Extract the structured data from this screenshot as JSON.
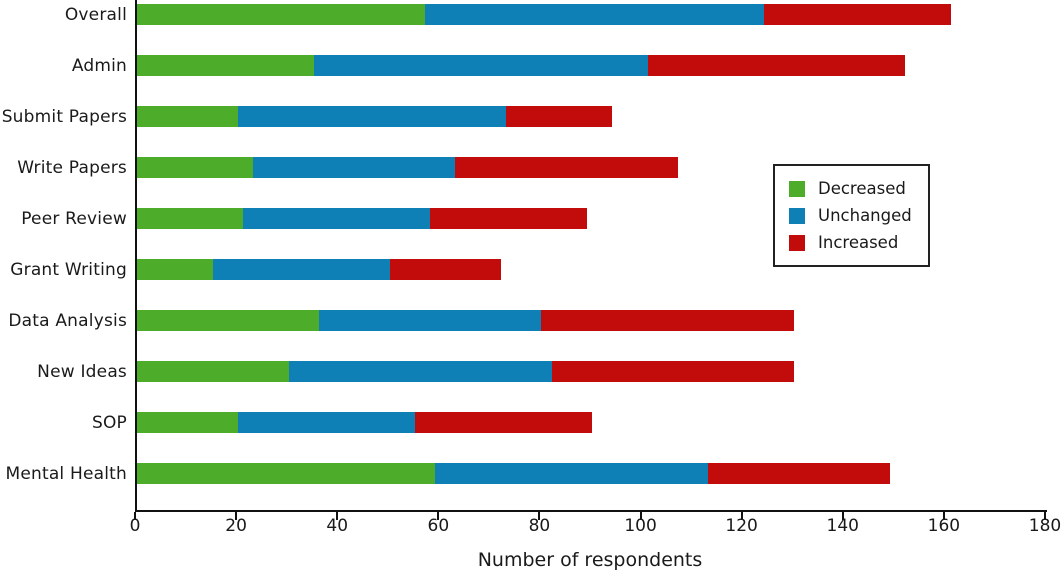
{
  "chart_data": {
    "type": "bar",
    "orientation": "horizontal",
    "stacked": true,
    "title": "",
    "xlabel": "Number of respondents",
    "xlim": [
      0,
      180
    ],
    "xticks": [
      0,
      20,
      40,
      60,
      80,
      100,
      120,
      140,
      160,
      180
    ],
    "grid": false,
    "legend_position": "upper right",
    "categories": [
      "Overall",
      "Admin",
      "Submit Papers",
      "Write Papers",
      "Peer Review",
      "Grant Writing",
      "Data Analysis",
      "New Ideas",
      "SOP",
      "Mental Health"
    ],
    "series": [
      {
        "name": "Decreased",
        "color": "#4dad2b",
        "values": [
          57,
          35,
          20,
          23,
          21,
          15,
          36,
          30,
          20,
          59
        ]
      },
      {
        "name": "Unchanged",
        "color": "#0f80b6",
        "values": [
          67,
          66,
          53,
          40,
          37,
          35,
          44,
          52,
          35,
          54
        ]
      },
      {
        "name": "Increased",
        "color": "#c20b0b",
        "values": [
          37,
          51,
          21,
          44,
          31,
          22,
          50,
          48,
          35,
          36
        ]
      }
    ],
    "totals": [
      161,
      152,
      94,
      107,
      89,
      72,
      130,
      130,
      90,
      149
    ]
  },
  "colors": {
    "axis": "#111111",
    "text": "#1a1a1a",
    "background": "#ffffff"
  }
}
